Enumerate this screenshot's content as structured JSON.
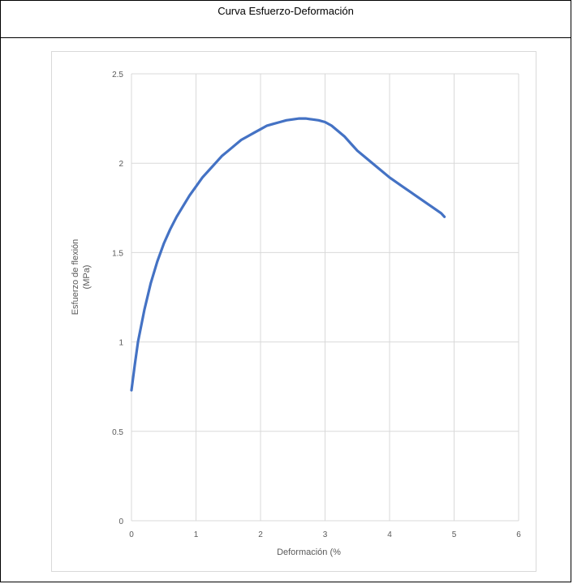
{
  "title": "Curva Esfuerzo-Deformación",
  "chart_data": {
    "type": "line",
    "xlabel": "Deformación (%",
    "ylabel_lines": [
      "Esfuerzo de flexión",
      "(MPa)"
    ],
    "xlim": [
      0,
      6
    ],
    "ylim": [
      0,
      2.5
    ],
    "x_ticks": [
      0,
      1,
      2,
      3,
      4,
      5,
      6
    ],
    "y_ticks": [
      0,
      0.5,
      1,
      1.5,
      2,
      2.5
    ],
    "grid": true,
    "legend": "none",
    "line_color": "#4472c4",
    "series": [
      {
        "x": [
          0,
          0.05,
          0.1,
          0.2,
          0.3,
          0.4,
          0.5,
          0.6,
          0.7,
          0.8,
          0.9,
          1.0,
          1.1,
          1.2,
          1.3,
          1.4,
          1.5,
          1.6,
          1.7,
          1.8,
          1.9,
          2.0,
          2.1,
          2.2,
          2.3,
          2.4,
          2.5,
          2.6,
          2.7,
          2.8,
          2.9,
          3.0,
          3.1,
          3.2,
          3.3,
          3.4,
          3.5,
          3.6,
          3.8,
          4.0,
          4.2,
          4.4,
          4.6,
          4.8,
          4.85
        ],
        "y": [
          0.73,
          0.87,
          1.0,
          1.18,
          1.33,
          1.45,
          1.55,
          1.63,
          1.7,
          1.76,
          1.82,
          1.87,
          1.92,
          1.96,
          2.0,
          2.04,
          2.07,
          2.1,
          2.13,
          2.15,
          2.17,
          2.19,
          2.21,
          2.22,
          2.23,
          2.24,
          2.245,
          2.25,
          2.25,
          2.245,
          2.24,
          2.23,
          2.21,
          2.18,
          2.15,
          2.11,
          2.07,
          2.04,
          1.98,
          1.92,
          1.87,
          1.82,
          1.77,
          1.72,
          1.7
        ]
      }
    ]
  }
}
